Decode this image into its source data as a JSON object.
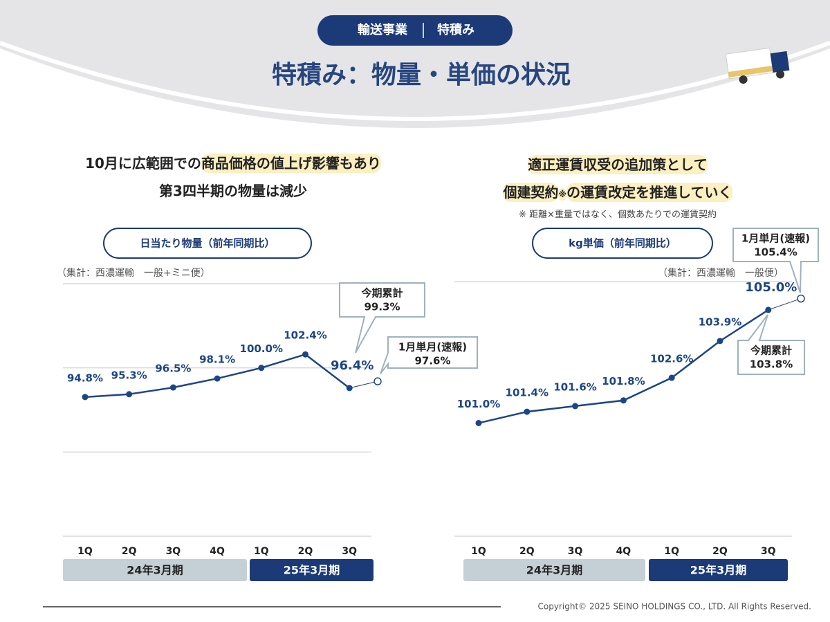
{
  "header": {
    "badge": [
      "輸送事業",
      "特積み"
    ],
    "title": "特積み：物量・単価の状況"
  },
  "headlines": [
    {
      "lines": [
        [
          {
            "text": "10月に広範囲での",
            "highlight": false
          },
          {
            "text": "商品価格の値上げ影響もあり",
            "highlight": true
          }
        ],
        [
          {
            "text": "第3四半期の物量は減少",
            "highlight": false
          }
        ]
      ]
    },
    {
      "lines": [
        [
          {
            "text": "適正運賃収受の追加策として",
            "highlight": true
          }
        ],
        [
          {
            "text": "個建契約",
            "highlight": true
          },
          {
            "text": "※",
            "highlight": true,
            "small": true
          },
          {
            "text": "の運賃改定を推進していく",
            "highlight": true
          }
        ]
      ],
      "note": "※ 距離×重量ではなく、個数あたりでの運賃契約"
    }
  ],
  "chart_data": [
    {
      "type": "line",
      "title": "日当たり物量（前年同期比）",
      "subtitle": "（集計：西濃運輸　一般+ミニ便）",
      "categories": [
        "1Q",
        "2Q",
        "3Q",
        "4Q",
        "1Q",
        "2Q",
        "3Q"
      ],
      "periods": [
        "24年3月期",
        "25年3月期"
      ],
      "values": [
        94.8,
        95.3,
        96.5,
        98.1,
        100.0,
        102.4,
        96.4
      ],
      "value_labels": [
        "94.8%",
        "95.3%",
        "96.5%",
        "98.1%",
        "100.0%",
        "102.4%",
        "96.4%"
      ],
      "color": "#1c4587",
      "ylim": [
        70,
        115
      ],
      "gridlines": [
        70,
        85,
        100,
        115
      ],
      "annotations": [
        {
          "label": "今期累計",
          "value": 99.3,
          "value_label": "99.3%"
        },
        {
          "label": "1月単月(速報)",
          "value": 97.6,
          "value_label": "97.6%",
          "marker": "hollow"
        }
      ]
    },
    {
      "type": "line",
      "title": "kg単価（前年同期比）",
      "subtitle": "（集計：西濃運輸　一般便）",
      "categories": [
        "1Q",
        "2Q",
        "3Q",
        "4Q",
        "1Q",
        "2Q",
        "3Q"
      ],
      "periods": [
        "24年3月期",
        "25年3月期"
      ],
      "values": [
        101.0,
        101.4,
        101.6,
        101.8,
        102.6,
        103.9,
        105.0
      ],
      "value_labels": [
        "101.0%",
        "101.4%",
        "101.6%",
        "101.8%",
        "102.6%",
        "103.9%",
        "105.0%"
      ],
      "color": "#1c4587",
      "ylim": [
        97,
        106
      ],
      "gridlines": [
        97,
        106
      ],
      "annotations": [
        {
          "label": "今期累計",
          "value": 103.8,
          "value_label": "103.8%"
        },
        {
          "label": "1月単月(速報)",
          "value": 105.4,
          "value_label": "105.4%",
          "marker": "hollow"
        }
      ]
    }
  ],
  "footer": {
    "copyright": "Copyright© 2025  SEINO HOLDINGS CO., LTD.  All  Rights Reserved."
  }
}
